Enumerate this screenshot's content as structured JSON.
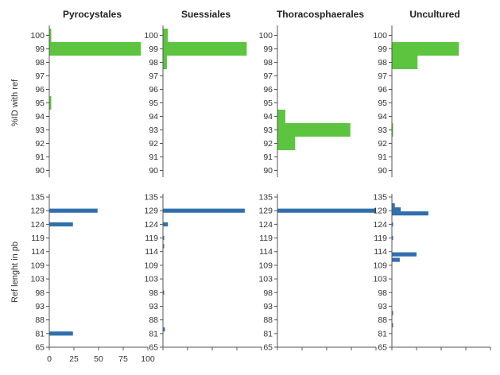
{
  "colors": {
    "identity": "#5cc43f",
    "length": "#2f6fae",
    "axis": "#555555",
    "text": "#333333"
  },
  "chart_data": {
    "type": "bar",
    "orientation": "horizontal",
    "panel_titles": [
      "Pyrocystales",
      "Suessiales",
      "Thoracosphaerales",
      "Uncultured"
    ],
    "x_ticks": [
      "0",
      "25",
      "50",
      "75",
      "100"
    ],
    "xlim": [
      0,
      100
    ],
    "rows": [
      {
        "ylabel": "%ID with ref",
        "color": "#5cc43f",
        "y_ticks": [
          "90",
          "91",
          "92",
          "93",
          "94",
          "95",
          "96",
          "97",
          "98",
          "99",
          "100"
        ],
        "ylim": [
          89.5,
          100.5
        ],
        "bar_height_units": 1,
        "panels": [
          {
            "title": "Pyrocystales",
            "bars": [
              {
                "y": 100,
                "value": 2
              },
              {
                "y": 99,
                "value": 93
              },
              {
                "y": 95,
                "value": 2
              }
            ]
          },
          {
            "title": "Suessiales",
            "bars": [
              {
                "y": 100,
                "value": 5
              },
              {
                "y": 99,
                "value": 85
              },
              {
                "y": 98,
                "value": 4
              }
            ]
          },
          {
            "title": "Thoracosphaerales",
            "bars": [
              {
                "y": 94,
                "value": 8
              },
              {
                "y": 93,
                "value": 74
              },
              {
                "y": 92,
                "value": 18
              }
            ]
          },
          {
            "title": "Uncultured",
            "bars": [
              {
                "y": 99,
                "value": 68
              },
              {
                "y": 98,
                "value": 26
              },
              {
                "y": 93,
                "value": 1
              }
            ]
          }
        ]
      },
      {
        "ylabel": "Ref lenght in pb",
        "color": "#2f6fae",
        "y_ticks": [
          "65",
          "81",
          "88",
          "93",
          "98",
          "103",
          "109",
          "114",
          "119",
          "124",
          "129",
          "135"
        ],
        "ylim": [
          0,
          11
        ],
        "bar_height_units": 0.3,
        "panels": [
          {
            "title": "Pyrocystales",
            "bars": [
              {
                "y": 10,
                "value": 49
              },
              {
                "y": 9,
                "value": 24
              },
              {
                "y": 1,
                "value": 24
              }
            ]
          },
          {
            "title": "Suessiales",
            "bars": [
              {
                "y": 10,
                "value": 83
              },
              {
                "y": 9,
                "value": 5
              },
              {
                "y": 8,
                "value": 1
              },
              {
                "y": 7.4,
                "value": 1
              },
              {
                "y": 4,
                "value": 1
              },
              {
                "y": 1.3,
                "value": 2
              }
            ]
          },
          {
            "title": "Thoracosphaerales",
            "bars": [
              {
                "y": 10,
                "value": 100
              }
            ]
          },
          {
            "title": "Uncultured",
            "bars": [
              {
                "y": 10.4,
                "value": 3
              },
              {
                "y": 10.1,
                "value": 9
              },
              {
                "y": 9.8,
                "value": 37
              },
              {
                "y": 9,
                "value": 1
              },
              {
                "y": 8,
                "value": 1
              },
              {
                "y": 6.8,
                "value": 25
              },
              {
                "y": 6.4,
                "value": 8
              },
              {
                "y": 2.5,
                "value": 1
              },
              {
                "y": 1.6,
                "value": 1
              }
            ]
          }
        ]
      }
    ]
  }
}
